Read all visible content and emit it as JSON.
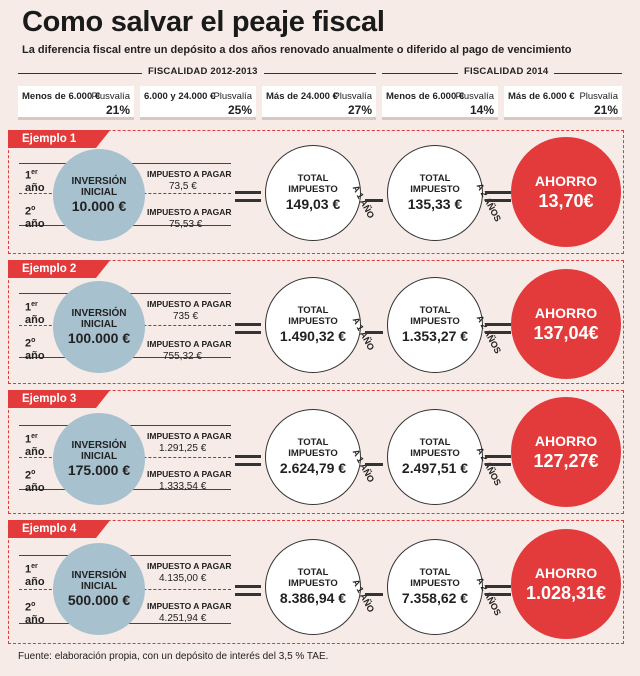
{
  "header": {
    "title": "Como salvar el peaje fiscal",
    "subtitle": "La diferencia fiscal entre un depósito a dos años renovado anualmente o diferido al pago de vencimiento"
  },
  "periods": [
    {
      "label": "FISCALIDAD 2012-2013"
    },
    {
      "label": "FISCALIDAD 2014"
    }
  ],
  "rates": [
    {
      "range": "Menos de 6.000 €",
      "label": "Plusvalía",
      "pct": "21%"
    },
    {
      "range": "6.000 y 24.000 €",
      "label": "Plusvalía",
      "pct": "25%"
    },
    {
      "range": "Más de 24.000 €",
      "label": "Plusvalía",
      "pct": "27%"
    },
    {
      "range": "Menos de 6.000 €",
      "label": "Plusvalía",
      "pct": "14%"
    },
    {
      "range": "Más de 6.000 €",
      "label": "Plusvalía",
      "pct": "21%"
    }
  ],
  "labels": {
    "year1": "año",
    "year1_num": "1",
    "year1_sup": "er",
    "year2": "año",
    "year2_num": "2",
    "year2_sup": "o",
    "investment": "INVERSIÓN INICIAL",
    "tax_to_pay": "IMPUESTO A PAGAR",
    "total_tax": "TOTAL IMPUESTO",
    "one_year": "A 1 AÑO",
    "two_years": "A 2 AÑOS",
    "saving": "AHORRO"
  },
  "examples": [
    {
      "name": "Ejemplo 1",
      "investment": "10.000 €",
      "tax_year1": "73,5 €",
      "tax_year2": "75,53 €",
      "total_1y": "149,03 €",
      "total_2y": "135,33 €",
      "saving": "13,70€"
    },
    {
      "name": "Ejemplo 2",
      "investment": "100.000 €",
      "tax_year1": "735 €",
      "tax_year2": "755,32 €",
      "total_1y": "1.490,32 €",
      "total_2y": "1.353,27 €",
      "saving": "137,04€"
    },
    {
      "name": "Ejemplo 3",
      "investment": "175.000 €",
      "tax_year1": "1.291,25 €",
      "tax_year2": "1.333,54 €",
      "total_1y": "2.624,79 €",
      "total_2y": "2.497,51 €",
      "saving": "127,27€"
    },
    {
      "name": "Ejemplo 4",
      "investment": "500.000 €",
      "tax_year1": "4.135,00 €",
      "tax_year2": "4.251,94 €",
      "total_1y": "8.386,94 €",
      "total_2y": "7.358,62 €",
      "saving": "1.028,31€"
    }
  ],
  "footer": {
    "source": "Fuente: elaboración propia, con un depósito de interés del 3,5 % TAE."
  },
  "colors": {
    "accent": "#e33b3b",
    "investment": "#a7c1cf",
    "background": "#f6ebe6"
  }
}
